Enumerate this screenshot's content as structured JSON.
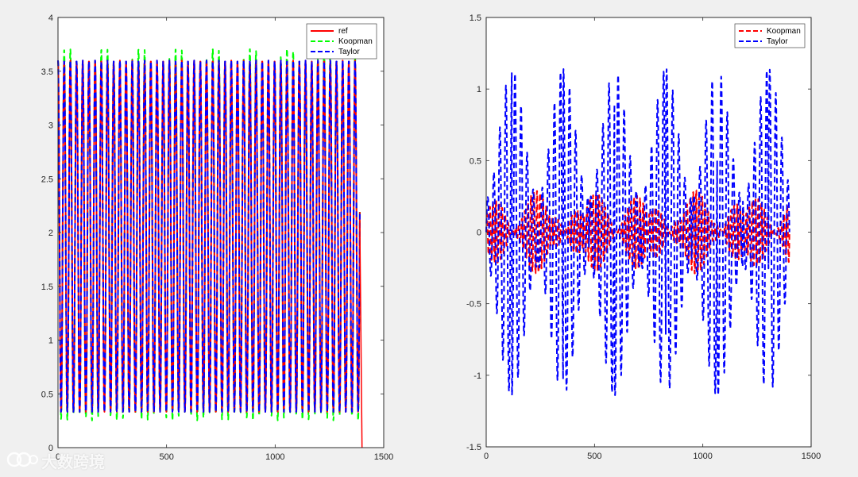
{
  "watermark": {
    "text": "大数跨境"
  },
  "chart_data": [
    {
      "type": "line",
      "xlim": [
        0,
        1500
      ],
      "ylim": [
        0,
        4
      ],
      "x_ticks": [
        "0",
        "500",
        "1000",
        "1500"
      ],
      "y_ticks": [
        "0",
        "0.5",
        "1",
        "1.5",
        "2",
        "2.5",
        "3",
        "3.5",
        "4"
      ],
      "x_tick_values": [
        0,
        500,
        1000,
        1500
      ],
      "y_tick_values": [
        0,
        0.5,
        1,
        1.5,
        2,
        2.5,
        3,
        3.5,
        4
      ],
      "grid": false,
      "legend_position": "top-right",
      "x_range": [
        0,
        1400
      ],
      "period": 28.5,
      "series": [
        {
          "name": "ref",
          "color": "#ff0000",
          "dash": "solid",
          "min": 0.33,
          "max": 3.6
        },
        {
          "name": "Koopman",
          "color": "#00ff00",
          "dash": "dashed",
          "min": 0.25,
          "max": 3.7
        },
        {
          "name": "Taylor",
          "color": "#0000ff",
          "dash": "dashed",
          "min": 0.33,
          "max": 3.6
        }
      ],
      "end_drop": {
        "x": [
          1390,
          1400
        ],
        "y": [
          2.1,
          0
        ]
      }
    },
    {
      "type": "line",
      "xlim": [
        0,
        1500
      ],
      "ylim": [
        -1.5,
        1.5
      ],
      "x_ticks": [
        "0",
        "500",
        "1000",
        "1500"
      ],
      "y_ticks": [
        "-1.5",
        "-1",
        "-0.5",
        "0",
        "0.5",
        "1",
        "1.5"
      ],
      "x_tick_values": [
        0,
        500,
        1000,
        1500
      ],
      "y_tick_values": [
        -1.5,
        -1,
        -0.5,
        0,
        0.5,
        1,
        1.5
      ],
      "grid": false,
      "legend_position": "top-right",
      "x_range": [
        0,
        1400
      ],
      "series": [
        {
          "name": "Koopman",
          "color": "#ff0000",
          "dash": "dashed",
          "amplitude": 0.3
        },
        {
          "name": "Taylor",
          "color": "#0000ff",
          "dash": "dashed",
          "amplitude": 1.1,
          "group_period": 237
        }
      ]
    }
  ]
}
